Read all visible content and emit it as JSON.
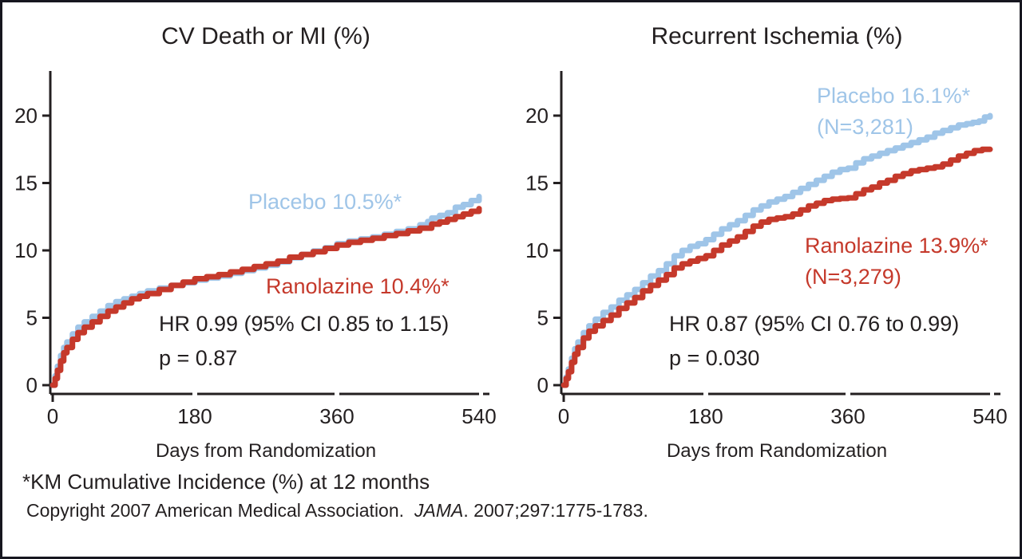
{
  "figure": {
    "footnote": "*KM Cumulative Incidence (%) at 12 months",
    "copyright_prefix": "Copyright 2007 American Medical Association.",
    "copyright_journal": "JAMA",
    "copyright_suffix": ". 2007;297:1775-1783.",
    "background": "#ffffff",
    "border_color": "#16161f",
    "axis_color": "#231f20"
  },
  "chart_data": [
    {
      "type": "line",
      "subtype": "kaplan-meier-cumulative-incidence",
      "title": "CV Death or MI (%)",
      "xlabel": "Days from Randomization",
      "ylabel": "",
      "xlim": [
        0,
        540
      ],
      "ylim": [
        0,
        23
      ],
      "xticks": [
        "0",
        "180",
        "360",
        "540"
      ],
      "yticks": [
        "0",
        "5",
        "10",
        "15",
        "20"
      ],
      "grid": false,
      "legend_position": "inline-annotations",
      "annotations": {
        "hr_text": "HR 0.99 (95% CI 0.85 to 1.15)",
        "p_text": "p = 0.87"
      },
      "series": [
        {
          "name": "Placebo",
          "label": "Placebo 10.5%*",
          "km_incidence_12mo": 10.5,
          "color": "#9fc5e8",
          "points": [
            [
              0,
              0
            ],
            [
              3,
              0.7
            ],
            [
              6,
              1.4
            ],
            [
              10,
              2.2
            ],
            [
              14,
              2.8
            ],
            [
              18,
              3.2
            ],
            [
              25,
              3.8
            ],
            [
              32,
              4.3
            ],
            [
              40,
              4.7
            ],
            [
              50,
              5.1
            ],
            [
              60,
              5.5
            ],
            [
              70,
              5.9
            ],
            [
              80,
              6.2
            ],
            [
              90,
              6.4
            ],
            [
              100,
              6.6
            ],
            [
              110,
              6.8
            ],
            [
              120,
              7.0
            ],
            [
              135,
              7.2
            ],
            [
              150,
              7.4
            ],
            [
              165,
              7.6
            ],
            [
              180,
              7.8
            ],
            [
              195,
              7.95
            ],
            [
              210,
              8.1
            ],
            [
              225,
              8.3
            ],
            [
              240,
              8.5
            ],
            [
              255,
              8.7
            ],
            [
              270,
              8.9
            ],
            [
              285,
              9.15
            ],
            [
              300,
              9.45
            ],
            [
              315,
              9.7
            ],
            [
              330,
              9.95
            ],
            [
              345,
              10.2
            ],
            [
              360,
              10.5
            ],
            [
              375,
              10.7
            ],
            [
              390,
              10.85
            ],
            [
              405,
              11.0
            ],
            [
              420,
              11.2
            ],
            [
              435,
              11.4
            ],
            [
              450,
              11.6
            ],
            [
              465,
              11.9
            ],
            [
              475,
              12.15
            ],
            [
              480,
              12.4
            ],
            [
              490,
              12.6
            ],
            [
              500,
              12.8
            ],
            [
              510,
              13.2
            ],
            [
              520,
              13.4
            ],
            [
              530,
              13.7
            ],
            [
              540,
              14.0
            ]
          ]
        },
        {
          "name": "Ranolazine",
          "label": "Ranolazine 10.4%*",
          "km_incidence_12mo": 10.4,
          "color": "#c5392b",
          "points": [
            [
              0,
              0
            ],
            [
              3,
              0.5
            ],
            [
              6,
              1.1
            ],
            [
              10,
              1.8
            ],
            [
              14,
              2.4
            ],
            [
              18,
              2.8
            ],
            [
              25,
              3.4
            ],
            [
              32,
              3.9
            ],
            [
              40,
              4.3
            ],
            [
              50,
              4.7
            ],
            [
              60,
              5.1
            ],
            [
              70,
              5.5
            ],
            [
              80,
              5.8
            ],
            [
              90,
              6.1
            ],
            [
              100,
              6.4
            ],
            [
              110,
              6.6
            ],
            [
              120,
              6.8
            ],
            [
              135,
              7.1
            ],
            [
              150,
              7.4
            ],
            [
              165,
              7.65
            ],
            [
              180,
              7.9
            ],
            [
              195,
              8.05
            ],
            [
              210,
              8.2
            ],
            [
              225,
              8.4
            ],
            [
              240,
              8.6
            ],
            [
              255,
              8.8
            ],
            [
              270,
              9.0
            ],
            [
              285,
              9.2
            ],
            [
              300,
              9.5
            ],
            [
              315,
              9.7
            ],
            [
              330,
              9.9
            ],
            [
              345,
              10.15
            ],
            [
              360,
              10.4
            ],
            [
              375,
              10.6
            ],
            [
              390,
              10.75
            ],
            [
              405,
              10.9
            ],
            [
              420,
              11.1
            ],
            [
              435,
              11.25
            ],
            [
              450,
              11.45
            ],
            [
              465,
              11.65
            ],
            [
              480,
              11.95
            ],
            [
              490,
              12.1
            ],
            [
              500,
              12.3
            ],
            [
              510,
              12.5
            ],
            [
              520,
              12.7
            ],
            [
              530,
              12.9
            ],
            [
              540,
              13.1
            ]
          ]
        }
      ]
    },
    {
      "type": "line",
      "subtype": "kaplan-meier-cumulative-incidence",
      "title": "Recurrent Ischemia (%)",
      "xlabel": "Days from Randomization",
      "ylabel": "",
      "xlim": [
        0,
        540
      ],
      "ylim": [
        0,
        23
      ],
      "xticks": [
        "0",
        "180",
        "360",
        "540"
      ],
      "yticks": [
        "0",
        "5",
        "10",
        "15",
        "20"
      ],
      "grid": false,
      "legend_position": "inline-annotations",
      "annotations": {
        "hr_text": "HR 0.87 (95% CI 0.76 to 0.99)",
        "p_text": "p = 0.030"
      },
      "series": [
        {
          "name": "Placebo",
          "label": "Placebo 16.1%*",
          "n_label": "(N=3,281)",
          "n": 3281,
          "km_incidence_12mo": 16.1,
          "color": "#9fc5e8",
          "points": [
            [
              0,
              0
            ],
            [
              3,
              0.6
            ],
            [
              6,
              1.2
            ],
            [
              10,
              2.0
            ],
            [
              14,
              2.7
            ],
            [
              18,
              3.2
            ],
            [
              25,
              3.9
            ],
            [
              32,
              4.4
            ],
            [
              40,
              4.9
            ],
            [
              50,
              5.4
            ],
            [
              60,
              5.8
            ],
            [
              70,
              6.3
            ],
            [
              80,
              6.7
            ],
            [
              90,
              7.1
            ],
            [
              100,
              7.6
            ],
            [
              110,
              8.1
            ],
            [
              120,
              8.5
            ],
            [
              130,
              9.0
            ],
            [
              140,
              9.6
            ],
            [
              150,
              10.0
            ],
            [
              160,
              10.3
            ],
            [
              170,
              10.5
            ],
            [
              180,
              10.8
            ],
            [
              190,
              11.2
            ],
            [
              200,
              11.6
            ],
            [
              210,
              11.9
            ],
            [
              220,
              12.2
            ],
            [
              230,
              12.6
            ],
            [
              240,
              13.0
            ],
            [
              250,
              13.3
            ],
            [
              260,
              13.6
            ],
            [
              270,
              13.8
            ],
            [
              280,
              14.0
            ],
            [
              290,
              14.3
            ],
            [
              300,
              14.6
            ],
            [
              310,
              14.9
            ],
            [
              320,
              15.2
            ],
            [
              330,
              15.5
            ],
            [
              340,
              15.8
            ],
            [
              350,
              16.0
            ],
            [
              360,
              16.1
            ],
            [
              370,
              16.5
            ],
            [
              380,
              16.8
            ],
            [
              390,
              17.0
            ],
            [
              400,
              17.2
            ],
            [
              410,
              17.4
            ],
            [
              420,
              17.6
            ],
            [
              430,
              17.8
            ],
            [
              440,
              18.0
            ],
            [
              450,
              18.2
            ],
            [
              460,
              18.4
            ],
            [
              470,
              18.7
            ],
            [
              480,
              18.9
            ],
            [
              490,
              19.1
            ],
            [
              500,
              19.3
            ],
            [
              510,
              19.4
            ],
            [
              518,
              19.5
            ],
            [
              526,
              19.6
            ],
            [
              533,
              19.9
            ],
            [
              540,
              20.0
            ]
          ]
        },
        {
          "name": "Ranolazine",
          "label": "Ranolazine 13.9%*",
          "n_label": "(N=3,279)",
          "n": 3279,
          "km_incidence_12mo": 13.9,
          "color": "#c5392b",
          "points": [
            [
              0,
              0
            ],
            [
              3,
              0.5
            ],
            [
              6,
              1.0
            ],
            [
              10,
              1.7
            ],
            [
              14,
              2.3
            ],
            [
              18,
              2.8
            ],
            [
              25,
              3.5
            ],
            [
              32,
              4.0
            ],
            [
              40,
              4.4
            ],
            [
              50,
              4.8
            ],
            [
              60,
              5.2
            ],
            [
              70,
              5.7
            ],
            [
              80,
              6.1
            ],
            [
              90,
              6.5
            ],
            [
              100,
              7.0
            ],
            [
              110,
              7.4
            ],
            [
              120,
              7.8
            ],
            [
              130,
              8.2
            ],
            [
              140,
              8.7
            ],
            [
              150,
              9.0
            ],
            [
              160,
              9.2
            ],
            [
              170,
              9.4
            ],
            [
              180,
              9.6
            ],
            [
              190,
              10.0
            ],
            [
              200,
              10.4
            ],
            [
              210,
              10.7
            ],
            [
              220,
              11.0
            ],
            [
              230,
              11.4
            ],
            [
              240,
              11.8
            ],
            [
              250,
              12.1
            ],
            [
              260,
              12.3
            ],
            [
              270,
              12.4
            ],
            [
              280,
              12.5
            ],
            [
              290,
              12.7
            ],
            [
              300,
              13.0
            ],
            [
              310,
              13.3
            ],
            [
              320,
              13.5
            ],
            [
              330,
              13.7
            ],
            [
              340,
              13.8
            ],
            [
              350,
              13.85
            ],
            [
              360,
              13.9
            ],
            [
              370,
              14.2
            ],
            [
              380,
              14.5
            ],
            [
              390,
              14.7
            ],
            [
              400,
              15.0
            ],
            [
              410,
              15.2
            ],
            [
              420,
              15.5
            ],
            [
              430,
              15.7
            ],
            [
              440,
              15.9
            ],
            [
              450,
              16.0
            ],
            [
              460,
              16.1
            ],
            [
              470,
              16.2
            ],
            [
              480,
              16.4
            ],
            [
              490,
              16.7
            ],
            [
              500,
              17.0
            ],
            [
              510,
              17.2
            ],
            [
              520,
              17.4
            ],
            [
              530,
              17.5
            ],
            [
              540,
              17.5
            ]
          ]
        }
      ]
    }
  ]
}
